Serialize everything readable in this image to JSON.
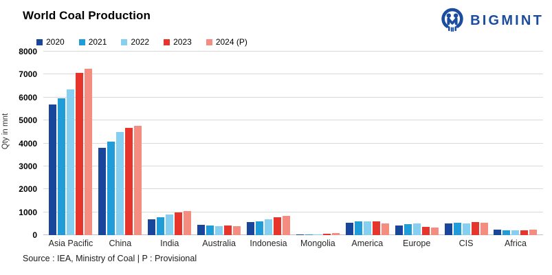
{
  "header": {
    "title": "World Coal Production",
    "brand": "BIGMINT",
    "brand_color": "#1B4C9E"
  },
  "footer": {
    "source": "Source : IEA, Ministry of Coal | P : Provisional"
  },
  "chart_data": {
    "type": "bar",
    "title": "World Coal Production",
    "xlabel": "",
    "ylabel": "Qty in mnt",
    "ylim": [
      0,
      8000
    ],
    "ytick_step": 1000,
    "grid": true,
    "legend_position": "top-left",
    "categories": [
      "Asia Pacific",
      "China",
      "India",
      "Australia",
      "Indonesia",
      "Mongolia",
      "America",
      "Europe",
      "CIS",
      "Africa"
    ],
    "series": [
      {
        "name": "2020",
        "color": "#18469B",
        "values": [
          5700,
          3800,
          700,
          450,
          560,
          45,
          550,
          420,
          500,
          230
        ]
      },
      {
        "name": "2021",
        "color": "#209CD8",
        "values": [
          5950,
          4070,
          780,
          420,
          610,
          32,
          610,
          470,
          550,
          220
        ]
      },
      {
        "name": "2022",
        "color": "#87CFF1",
        "values": [
          6350,
          4500,
          890,
          390,
          690,
          42,
          600,
          500,
          520,
          200
        ]
      },
      {
        "name": "2023",
        "color": "#E6352D",
        "values": [
          7080,
          4660,
          1000,
          420,
          775,
          70,
          610,
          350,
          570,
          210
        ]
      },
      {
        "name": "2024 (P)",
        "color": "#F58C80",
        "values": [
          7250,
          4760,
          1050,
          400,
          830,
          85,
          500,
          330,
          540,
          240
        ]
      }
    ],
    "colors": {
      "gridline": "#D9D9D9",
      "baseline": "#BFBFBF"
    }
  }
}
